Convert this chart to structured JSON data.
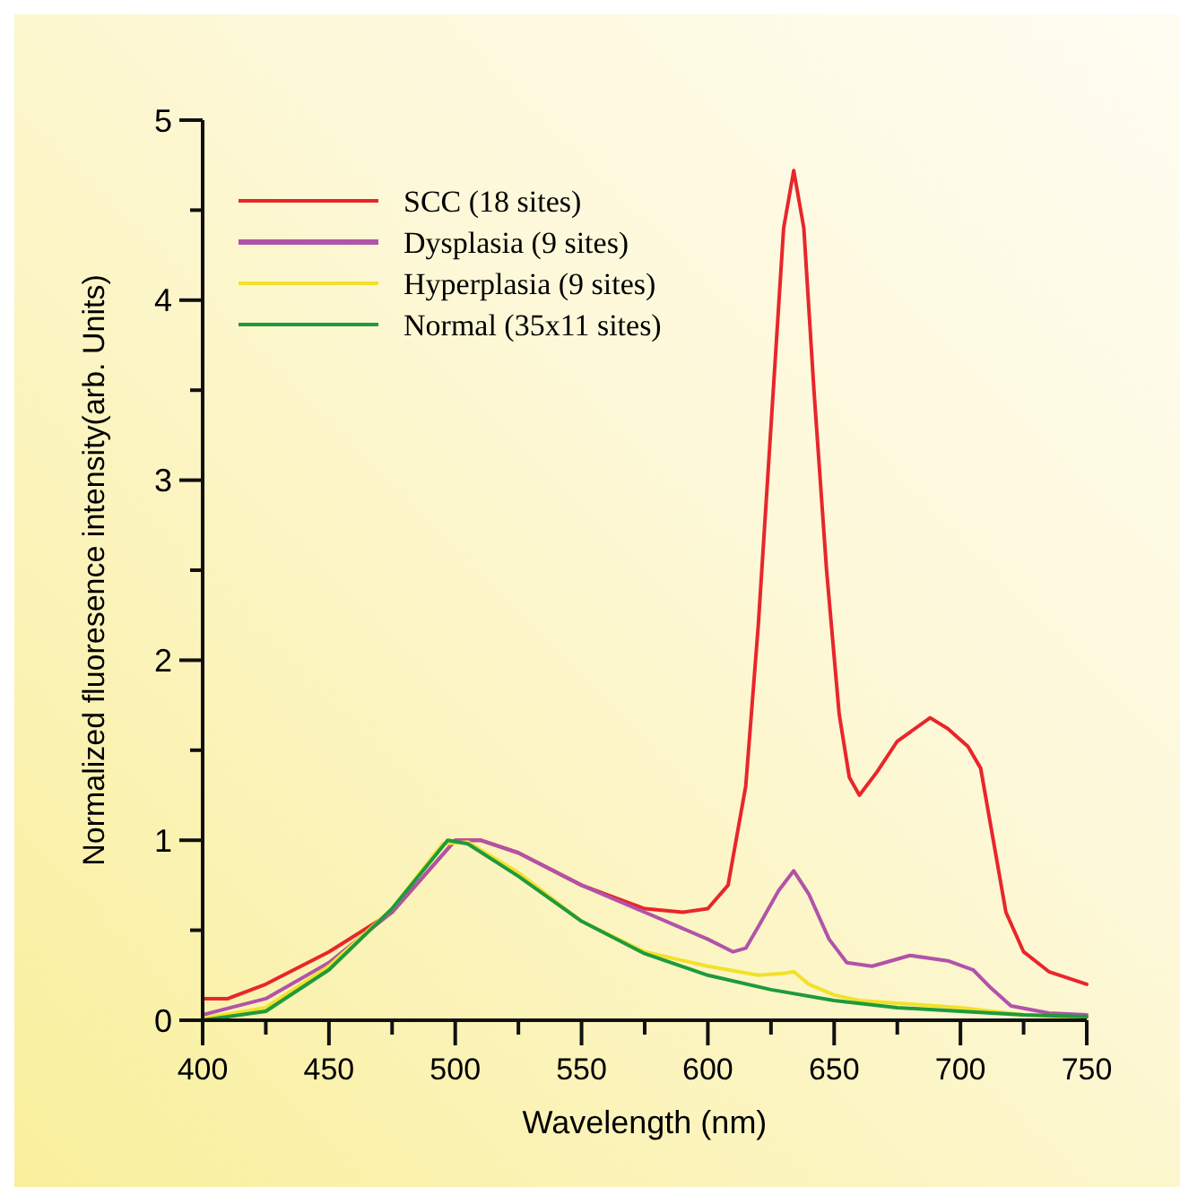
{
  "chart_data": {
    "type": "line",
    "xlabel": "Wavelength (nm)",
    "ylabel": "Normalized fluoresence intensity(arb. Units)",
    "xlim": [
      400,
      750
    ],
    "ylim": [
      0,
      5
    ],
    "xticks": [
      400,
      {
        "value": 425,
        "label": null
      },
      450,
      {
        "value": 475,
        "label": null
      },
      500,
      {
        "value": 525,
        "label": null
      },
      550,
      {
        "value": 575,
        "label": null
      },
      600,
      {
        "value": 625,
        "label": null
      },
      650,
      {
        "value": 675,
        "label": null
      },
      700,
      {
        "value": 725,
        "label": null
      },
      750
    ],
    "yticks": [
      0,
      {
        "value": 0.5,
        "label": null
      },
      1,
      {
        "value": 1.5,
        "label": null
      },
      2,
      {
        "value": 2.5,
        "label": null
      },
      3,
      {
        "value": 3.5,
        "label": null
      },
      4,
      {
        "value": 4.5,
        "label": null
      },
      5
    ],
    "legend": "top left",
    "grid": false,
    "marker": "none",
    "line_style": "solid",
    "series": [
      {
        "name": "SCC (18 sites)",
        "color": "#e8262b",
        "x": [
          400,
          410,
          425,
          450,
          475,
          500,
          510,
          525,
          550,
          575,
          590,
          600,
          608,
          615,
          620,
          625,
          630,
          634,
          638,
          642,
          647,
          652,
          656,
          660,
          667,
          675,
          688,
          695,
          703,
          708,
          713,
          718,
          725,
          735,
          750
        ],
        "values": [
          0.12,
          0.12,
          0.2,
          0.38,
          0.6,
          1.0,
          1.0,
          0.93,
          0.75,
          0.62,
          0.6,
          0.62,
          0.75,
          1.3,
          2.2,
          3.3,
          4.4,
          4.72,
          4.4,
          3.5,
          2.5,
          1.7,
          1.35,
          1.25,
          1.38,
          1.55,
          1.68,
          1.62,
          1.52,
          1.4,
          1.0,
          0.6,
          0.38,
          0.27,
          0.2
        ]
      },
      {
        "name": "Dysplasia (9 sites)",
        "color": "#b153a8",
        "x": [
          400,
          425,
          450,
          475,
          500,
          510,
          525,
          550,
          575,
          600,
          610,
          615,
          620,
          628,
          634,
          640,
          648,
          655,
          665,
          680,
          695,
          705,
          712,
          720,
          735,
          750
        ],
        "values": [
          0.03,
          0.12,
          0.32,
          0.6,
          1.0,
          1.0,
          0.93,
          0.75,
          0.6,
          0.45,
          0.38,
          0.4,
          0.52,
          0.72,
          0.83,
          0.7,
          0.45,
          0.32,
          0.3,
          0.36,
          0.33,
          0.28,
          0.18,
          0.08,
          0.04,
          0.03
        ]
      },
      {
        "name": "Hyperplasia (9 sites)",
        "color": "#f2e12a",
        "x": [
          400,
          425,
          450,
          475,
          495,
          505,
          525,
          550,
          575,
          600,
          620,
          630,
          634,
          640,
          650,
          660,
          680,
          700,
          725,
          750
        ],
        "values": [
          0.01,
          0.07,
          0.3,
          0.62,
          0.98,
          0.99,
          0.82,
          0.55,
          0.38,
          0.3,
          0.25,
          0.26,
          0.27,
          0.2,
          0.14,
          0.11,
          0.09,
          0.07,
          0.03,
          0.01
        ]
      },
      {
        "name": "Normal (35x11 sites)",
        "color": "#1f9a3c",
        "x": [
          400,
          425,
          450,
          475,
          497,
          505,
          525,
          550,
          575,
          600,
          625,
          650,
          675,
          700,
          725,
          750
        ],
        "values": [
          0,
          0.05,
          0.28,
          0.62,
          1.0,
          0.98,
          0.8,
          0.55,
          0.37,
          0.25,
          0.17,
          0.11,
          0.07,
          0.05,
          0.03,
          0.02
        ]
      }
    ]
  }
}
